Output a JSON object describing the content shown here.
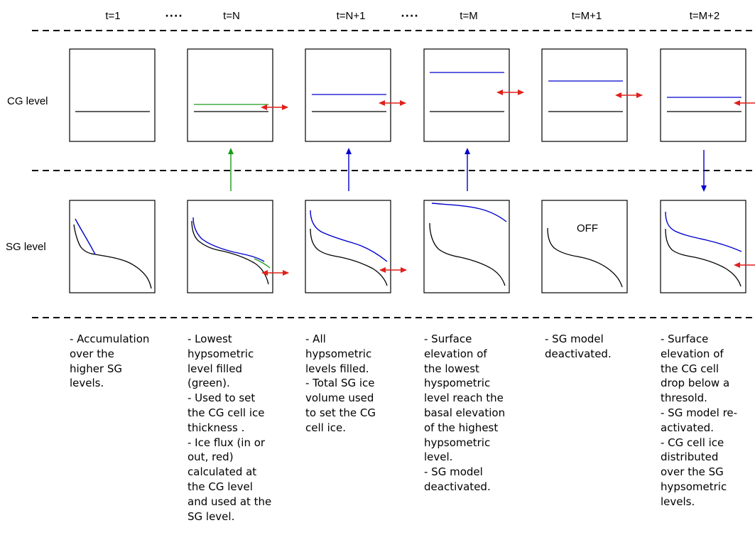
{
  "time_steps": [
    "t=1",
    "t=N",
    "t=N+1",
    "t=M",
    "t=M+1",
    "t=M+2"
  ],
  "ellipsis": "····",
  "rows": {
    "cg_label": "CG level",
    "sg_label": "SG level"
  },
  "sg_off_label": "OFF",
  "colors": {
    "baseline": "#000000",
    "filled_level": "#1a9a1a",
    "ice_surface": "#0000cc",
    "ice_flux": "#e0201b",
    "dashed_separator": "#000000"
  },
  "descriptions": [
    "- Accumulation\nover the\nhigher SG\nlevels.",
    "- Lowest\nhypsometric\nlevel filled\n(green).\n- Used to set\nthe CG cell ice\nthickness .\n- Ice flux (in or\nout, red)\ncalculated at\nthe CG level\nand used at the\nSG level.",
    "- All\nhypsometric\nlevels filled.\n- Total SG ice\nvolume used\nto set the CG\ncell ice.",
    "- Surface\nelevation of\nthe lowest\nhyspometric\nlevel reach the\nbasal elevation\nof the highest\nhypsometric\nlevel.\n- SG model\ndeactivated.",
    "- SG model\ndeactivated.",
    "- Surface\nelevation of\nthe CG cell\ndrop below a\nthresold.\n- SG model re-\nactivated.\n- CG cell ice\ndistributed\nover the SG\nhypsometric\nlevels."
  ]
}
